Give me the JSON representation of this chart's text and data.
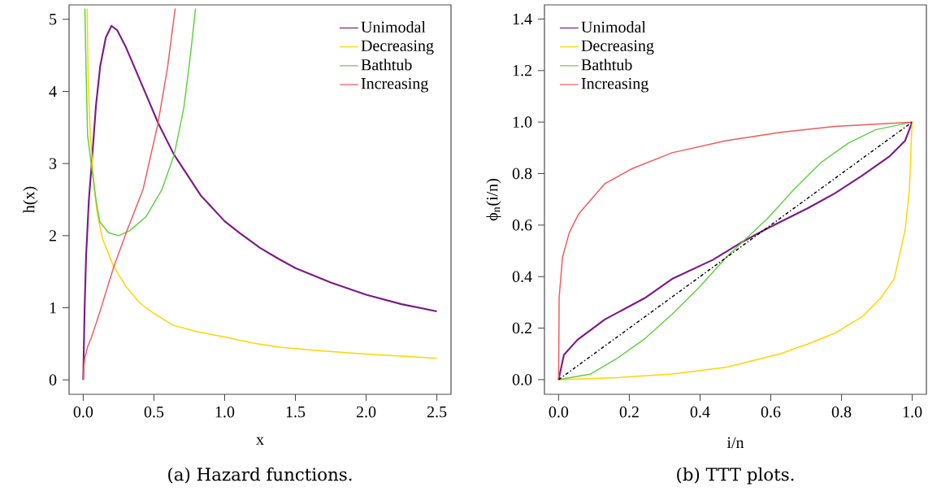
{
  "chart_data": [
    {
      "type": "line",
      "title": "(a) Hazard functions.",
      "xlabel": "x",
      "ylabel": "h(x)",
      "legend": "top right",
      "marker": "none",
      "xlim": [
        -0.1,
        2.6
      ],
      "ylim": [
        -0.2,
        5.2
      ],
      "xticks": [
        {
          "value": 0,
          "label": "0.0"
        },
        {
          "value": 0.5,
          "label": "0.5"
        },
        {
          "value": 1,
          "label": "1.0"
        },
        {
          "value": 1.5,
          "label": "1.5"
        },
        {
          "value": 2,
          "label": "2.0"
        },
        {
          "value": 2.5,
          "label": "2.5"
        }
      ],
      "yticks": [
        0,
        1,
        2,
        3,
        4,
        5
      ],
      "series": [
        {
          "name": "Unimodal",
          "color": "#7b1a86",
          "x": [
            0,
            0.01,
            0.02,
            0.04,
            0.06,
            0.09,
            0.12,
            0.16,
            0.2,
            0.24,
            0.3,
            0.37,
            0.45,
            0.53,
            0.64,
            0.83,
            1.0,
            1.11,
            1.25,
            1.38,
            1.5,
            1.75,
            2.0,
            2.25,
            2.5
          ],
          "values": [
            0,
            1.0,
            1.7,
            2.5,
            3.0,
            3.8,
            4.35,
            4.75,
            4.91,
            4.85,
            4.62,
            4.3,
            3.93,
            3.56,
            3.13,
            2.56,
            2.2,
            2.03,
            1.83,
            1.68,
            1.55,
            1.35,
            1.18,
            1.05,
            0.95
          ]
        },
        {
          "name": "Decreasing",
          "color": "#ffd400",
          "x": [
            0.028,
            0.035,
            0.05,
            0.079,
            0.1,
            0.136,
            0.213,
            0.3,
            0.404,
            0.5,
            0.634,
            0.8,
            1.017,
            1.2,
            1.4,
            1.7,
            1.975,
            2.25,
            2.5
          ],
          "values": [
            5.15,
            4.2,
            3.39,
            2.64,
            2.3,
            1.96,
            1.58,
            1.3,
            1.06,
            0.92,
            0.76,
            0.67,
            0.59,
            0.51,
            0.45,
            0.4,
            0.36,
            0.33,
            0.3
          ]
        },
        {
          "name": "Bathtub",
          "color": "#5fd040",
          "x": [
            0.012,
            0.02,
            0.031,
            0.06,
            0.09,
            0.117,
            0.18,
            0.251,
            0.33,
            0.443,
            0.557,
            0.644,
            0.711,
            0.759,
            0.794
          ],
          "values": [
            5.15,
            4.3,
            3.39,
            2.94,
            2.5,
            2.19,
            2.04,
            2.0,
            2.07,
            2.26,
            2.64,
            3.13,
            3.77,
            4.52,
            5.15
          ]
        },
        {
          "name": "Increasing",
          "color": "#f05a5a",
          "x": [
            0,
            0.003,
            0.011,
            0.03,
            0.06,
            0.117,
            0.213,
            0.309,
            0.423,
            0.529,
            0.596,
            0.65
          ],
          "values": [
            0,
            0.15,
            0.3,
            0.45,
            0.6,
            0.94,
            1.55,
            2.07,
            2.64,
            3.56,
            4.33,
            5.15
          ]
        }
      ]
    },
    {
      "type": "line",
      "title": "(b) TTT plots.",
      "xlabel": "i/n",
      "ylabel": "ϕ$_{n}$(i/n)",
      "legend": "top left",
      "marker": "none",
      "xlim": [
        -0.04,
        1.04
      ],
      "ylim": [
        -0.057,
        1.455
      ],
      "xticks": [
        {
          "value": 0,
          "label": "0.0"
        },
        {
          "value": 0.2,
          "label": "0.2"
        },
        {
          "value": 0.4,
          "label": "0.4"
        },
        {
          "value": 0.6,
          "label": "0.6"
        },
        {
          "value": 0.8,
          "label": "0.8"
        },
        {
          "value": 1,
          "label": "1.0"
        }
      ],
      "yticks": [
        {
          "value": 0,
          "label": "0.0"
        },
        {
          "value": 0.2,
          "label": "0.2"
        },
        {
          "value": 0.4,
          "label": "0.4"
        },
        {
          "value": 0.6,
          "label": "0.6"
        },
        {
          "value": 0.8,
          "label": "0.8"
        },
        {
          "value": 1,
          "label": "1.0"
        },
        {
          "value": 1.2,
          "label": "1.2"
        },
        {
          "value": 1.4,
          "label": "1.4"
        }
      ],
      "series": [
        {
          "name": "Unimodal",
          "color": "#7b1a86",
          "x": [
            0,
            0.015,
            0.053,
            0.13,
            0.244,
            0.321,
            0.436,
            0.52,
            0.589,
            0.704,
            0.781,
            0.857,
            0.934,
            0.98,
            1
          ],
          "values": [
            0,
            0.096,
            0.154,
            0.233,
            0.317,
            0.391,
            0.465,
            0.535,
            0.586,
            0.665,
            0.723,
            0.791,
            0.865,
            0.928,
            1
          ]
        },
        {
          "name": "Decreasing",
          "color": "#ffd400",
          "x": [
            0,
            0.168,
            0.321,
            0.474,
            0.628,
            0.704,
            0.781,
            0.857,
            0.911,
            0.949,
            0.98,
            0.992,
            0.998,
            1
          ],
          "values": [
            0,
            0.008,
            0.022,
            0.048,
            0.101,
            0.138,
            0.18,
            0.243,
            0.317,
            0.391,
            0.581,
            0.739,
            0.949,
            1
          ]
        },
        {
          "name": "Bathtub",
          "color": "#5fd040",
          "x": [
            0,
            0.091,
            0.168,
            0.244,
            0.321,
            0.398,
            0.474,
            0.52,
            0.589,
            0.666,
            0.743,
            0.819,
            0.896,
            1
          ],
          "values": [
            0,
            0.022,
            0.085,
            0.159,
            0.254,
            0.359,
            0.475,
            0.535,
            0.623,
            0.739,
            0.844,
            0.918,
            0.97,
            1
          ]
        },
        {
          "name": "Increasing",
          "color": "#f05a5a",
          "x": [
            0,
            0.001,
            0.0015,
            0.011,
            0.03,
            0.057,
            0.13,
            0.206,
            0.321,
            0.474,
            0.628,
            0.781,
            1
          ],
          "values": [
            0,
            0.2,
            0.317,
            0.475,
            0.57,
            0.644,
            0.76,
            0.818,
            0.881,
            0.928,
            0.96,
            0.983,
            1
          ]
        },
        {
          "color": "#000000",
          "line_style": "dashdot",
          "x": [
            0,
            1
          ],
          "values": [
            0,
            1
          ]
        }
      ]
    }
  ]
}
